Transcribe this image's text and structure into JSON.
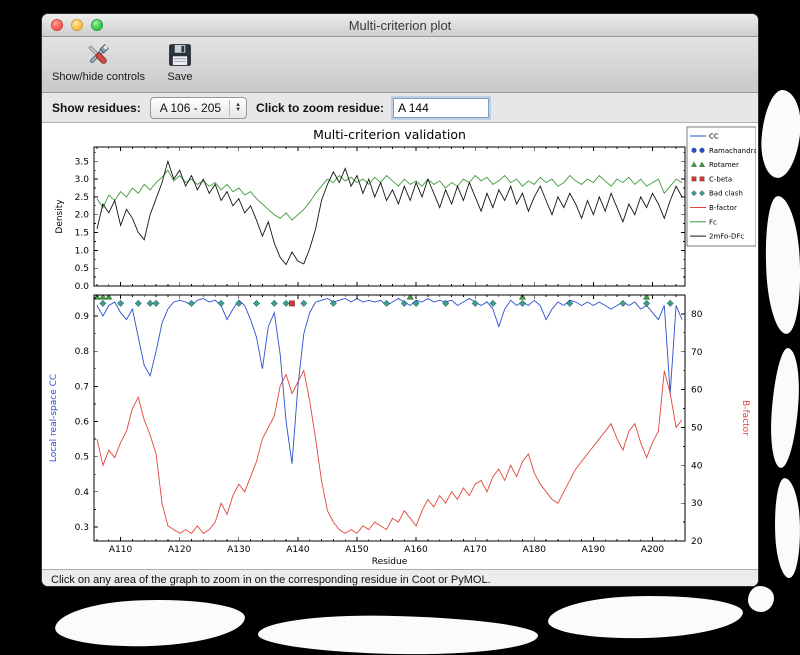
{
  "window": {
    "title": "Multi-criterion plot"
  },
  "toolbar": {
    "buttons": [
      {
        "label": "Show/hide controls",
        "icon": "tools-icon"
      },
      {
        "label": "Save",
        "icon": "save-icon"
      }
    ]
  },
  "controls": {
    "show_residues_label": "Show residues:",
    "residue_range_value": "A 106 - 205",
    "zoom_label": "Click to zoom residue:",
    "zoom_value": "A 144"
  },
  "statusbar": {
    "text": "Click on any area of the graph to zoom in on the corresponding residue in Coot or PyMOL."
  },
  "chart_data": {
    "type": "line",
    "title": "Multi-criterion validation",
    "xlabel": "Residue",
    "x_tick_prefix": "A",
    "x_start": 106,
    "x_range": [
      105.5,
      205.5
    ],
    "x_major_ticks": [
      110,
      120,
      130,
      140,
      150,
      160,
      170,
      180,
      190,
      200
    ],
    "top": {
      "ylabel": "Density",
      "ylim": [
        0,
        3.9
      ],
      "yticks": [
        0,
        0.5,
        1,
        1.5,
        2,
        2.5,
        3,
        3.5
      ],
      "series": [
        {
          "name": "Fc",
          "color": "#3d9c3d",
          "values": [
            2.45,
            2.2,
            2.55,
            2.4,
            2.65,
            2.5,
            2.75,
            2.6,
            2.85,
            2.7,
            2.9,
            3.05,
            3.25,
            2.95,
            3.1,
            2.9,
            3.0,
            2.85,
            2.95,
            2.8,
            2.9,
            2.7,
            2.85,
            2.65,
            2.75,
            2.55,
            2.65,
            2.45,
            2.3,
            2.15,
            2.0,
            1.9,
            2.05,
            1.85,
            2.0,
            2.15,
            2.35,
            2.6,
            2.8,
            3.0,
            2.9,
            3.1,
            2.95,
            3.05,
            2.9,
            3.0,
            2.85,
            3.05,
            2.9,
            3.1,
            2.95,
            2.8,
            3.0,
            2.85,
            2.95,
            2.8,
            3.0,
            2.85,
            2.95,
            2.75,
            2.9,
            2.8,
            3.0,
            2.9,
            3.1,
            2.95,
            3.05,
            2.85,
            2.95,
            3.1,
            2.9,
            3.0,
            2.8,
            2.95,
            2.85,
            3.05,
            2.9,
            3.0,
            2.8,
            2.9,
            3.1,
            2.95,
            2.85,
            3.0,
            2.9,
            3.1,
            2.95,
            2.8,
            3.0,
            2.9,
            3.05,
            2.85,
            3.0,
            2.8,
            2.9,
            3.0,
            2.6,
            2.8,
            3.0,
            2.9
          ]
        },
        {
          "name": "2mFo-DFc",
          "color": "#151515",
          "values": [
            1.6,
            2.3,
            2.05,
            2.4,
            1.7,
            2.15,
            1.9,
            1.5,
            1.3,
            2.0,
            2.45,
            2.9,
            3.5,
            3.0,
            3.25,
            2.8,
            3.1,
            2.7,
            3.0,
            2.6,
            2.85,
            2.4,
            2.65,
            2.25,
            2.45,
            2.05,
            2.25,
            1.85,
            1.4,
            1.8,
            1.2,
            0.8,
            0.6,
            0.95,
            0.7,
            0.62,
            1.05,
            1.6,
            2.4,
            2.85,
            3.2,
            2.9,
            3.3,
            2.8,
            3.1,
            2.6,
            3.0,
            2.5,
            2.9,
            2.4,
            2.7,
            2.3,
            2.8,
            2.4,
            2.9,
            2.5,
            3.0,
            2.6,
            2.2,
            2.7,
            2.3,
            2.8,
            2.4,
            2.9,
            2.5,
            2.1,
            2.6,
            2.2,
            2.7,
            2.4,
            2.8,
            2.3,
            2.6,
            2.1,
            2.5,
            2.8,
            2.4,
            2.0,
            2.5,
            2.2,
            2.6,
            2.3,
            1.9,
            2.4,
            2.0,
            2.5,
            2.1,
            2.6,
            2.2,
            1.8,
            2.3,
            2.0,
            2.5,
            2.2,
            2.6,
            2.3,
            1.9,
            2.4,
            2.8,
            2.5
          ]
        }
      ]
    },
    "bottom": {
      "left": {
        "ylabel": "Local real-space CC",
        "color": "#2b4fcc",
        "ylim": [
          0.26,
          0.96
        ],
        "yticks": [
          0.3,
          0.4,
          0.5,
          0.6,
          0.7,
          0.8,
          0.9
        ]
      },
      "right": {
        "ylabel": "B-factor",
        "color": "#e0453a",
        "ylim": [
          20,
          85
        ],
        "yticks": [
          20,
          30,
          40,
          50,
          60,
          70,
          80
        ]
      },
      "series": [
        {
          "name": "CC",
          "axis": "left",
          "color": "#2b4fcc",
          "values": [
            0.93,
            0.9,
            0.93,
            0.94,
            0.91,
            0.89,
            0.92,
            0.84,
            0.76,
            0.73,
            0.8,
            0.88,
            0.92,
            0.94,
            0.945,
            0.94,
            0.93,
            0.945,
            0.95,
            0.94,
            0.945,
            0.93,
            0.89,
            0.92,
            0.945,
            0.93,
            0.89,
            0.84,
            0.75,
            0.87,
            0.91,
            0.79,
            0.6,
            0.48,
            0.7,
            0.85,
            0.91,
            0.94,
            0.945,
            0.95,
            0.94,
            0.945,
            0.95,
            0.94,
            0.95,
            0.94,
            0.945,
            0.94,
            0.945,
            0.93,
            0.94,
            0.95,
            0.94,
            0.93,
            0.945,
            0.94,
            0.95,
            0.94,
            0.945,
            0.94,
            0.945,
            0.93,
            0.94,
            0.95,
            0.94,
            0.93,
            0.94,
            0.92,
            0.87,
            0.92,
            0.945,
            0.93,
            0.94,
            0.93,
            0.945,
            0.93,
            0.89,
            0.92,
            0.94,
            0.93,
            0.945,
            0.94,
            0.93,
            0.94,
            0.93,
            0.94,
            0.93,
            0.92,
            0.93,
            0.94,
            0.93,
            0.94,
            0.92,
            0.93,
            0.91,
            0.89,
            0.93,
            0.68,
            0.93,
            0.89
          ]
        },
        {
          "name": "B-factor",
          "axis": "right",
          "color": "#e0453a",
          "values": [
            47,
            40,
            44,
            42,
            46,
            49,
            55,
            58,
            52,
            48,
            43,
            30,
            24,
            23,
            22,
            23,
            22,
            24,
            22,
            23,
            25,
            30,
            27,
            32,
            35,
            33,
            37,
            41,
            47,
            50,
            53,
            61,
            64,
            59,
            62,
            65,
            57,
            47,
            36,
            28,
            25,
            23,
            22,
            23,
            22,
            24,
            23,
            25,
            24,
            23,
            26,
            25,
            28,
            26,
            24,
            28,
            31,
            29,
            32,
            30,
            33,
            31,
            34,
            32,
            35,
            36,
            33,
            37,
            39,
            36,
            40,
            37,
            41,
            43,
            38,
            35,
            33,
            31,
            30,
            33,
            36,
            39,
            41,
            43,
            45,
            47,
            49,
            51,
            47,
            44,
            49,
            51,
            46,
            42,
            46,
            49,
            65,
            59,
            50,
            52
          ]
        }
      ],
      "markers": [
        {
          "name": "Rotamer",
          "shape": "triangle",
          "color": "#3d9c3d",
          "y": 0.955,
          "residues": [
            106,
            107,
            108,
            159,
            178,
            199
          ]
        },
        {
          "name": "Bad clash",
          "shape": "diamond",
          "color": "#3aa096",
          "y": 0.936,
          "residues": [
            107,
            110,
            113,
            115,
            116,
            122,
            127,
            130,
            133,
            136,
            138,
            141,
            146,
            155,
            158,
            160,
            165,
            170,
            173,
            178,
            186,
            195,
            199,
            203
          ]
        },
        {
          "name": "C-beta",
          "shape": "square",
          "color": "#cc3a32",
          "y": 0.936,
          "residues": [
            139
          ]
        },
        {
          "name": "Ramachandran",
          "shape": "circle",
          "color": "#2b4fcc",
          "y": 0.936,
          "residues": []
        }
      ]
    },
    "legend": [
      {
        "label": "CC",
        "kind": "line",
        "color": "#2b4fcc"
      },
      {
        "label": "Ramachandran",
        "kind": "marker",
        "shape": "circle",
        "color": "#2b4fcc"
      },
      {
        "label": "Rotamer",
        "kind": "marker",
        "shape": "triangle",
        "color": "#3d9c3d"
      },
      {
        "label": "C-beta",
        "kind": "marker",
        "shape": "square",
        "color": "#cc3a32"
      },
      {
        "label": "Bad clash",
        "kind": "marker",
        "shape": "diamond",
        "color": "#3aa096"
      },
      {
        "label": "B-factor",
        "kind": "line",
        "color": "#e0453a"
      },
      {
        "label": "Fc",
        "kind": "line",
        "color": "#3d9c3d"
      },
      {
        "label": "2mFo-DFc",
        "kind": "line",
        "color": "#151515"
      }
    ]
  }
}
